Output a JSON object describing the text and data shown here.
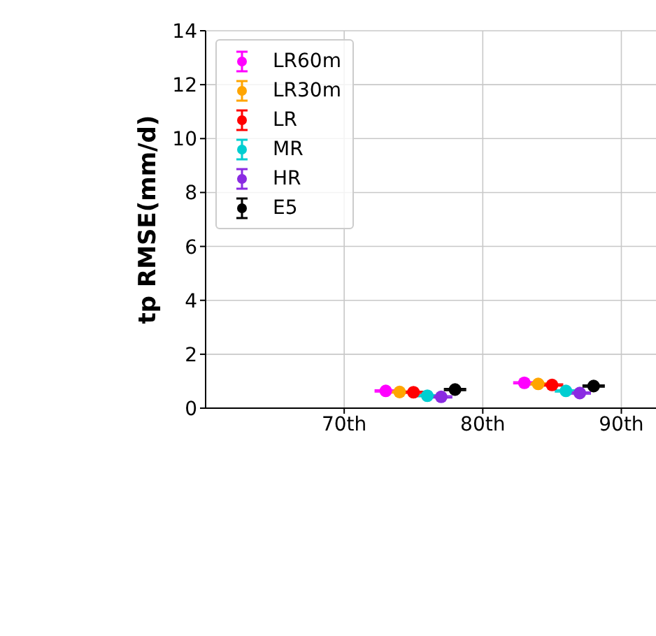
{
  "chart_data": {
    "type": "scatter",
    "ylabel": "tp RMSE(mm/d)",
    "xlim": [
      60,
      92.5
    ],
    "xticks": [
      {
        "value": 70,
        "label": "70th"
      },
      {
        "value": 80,
        "label": "80th"
      },
      {
        "value": 90,
        "label": "90th"
      }
    ],
    "ylim": [
      0,
      14
    ],
    "yticks": [
      0,
      2,
      4,
      6,
      8,
      10,
      12,
      14
    ],
    "grid": true,
    "legend": "top left",
    "marker": "circle",
    "series": [
      {
        "name": "LR60m",
        "color": "#ff00ff",
        "x": [
          73,
          83
        ],
        "values": [
          0.64,
          0.94
        ],
        "errors": [
          0.03,
          0.03
        ]
      },
      {
        "name": "LR30m",
        "color": "#ffa500",
        "x": [
          74,
          84
        ],
        "values": [
          0.6,
          0.9
        ],
        "errors": [
          0.03,
          0.03
        ]
      },
      {
        "name": "LR",
        "color": "#ff0000",
        "x": [
          75,
          85
        ],
        "values": [
          0.59,
          0.86
        ],
        "errors": [
          0.03,
          0.03
        ]
      },
      {
        "name": "MR",
        "color": "#00ced1",
        "x": [
          76,
          86
        ],
        "values": [
          0.46,
          0.64
        ],
        "errors": [
          0.03,
          0.03
        ]
      },
      {
        "name": "HR",
        "color": "#8a2be2",
        "x": [
          77,
          87
        ],
        "values": [
          0.42,
          0.56
        ],
        "errors": [
          0.03,
          0.03
        ]
      },
      {
        "name": "E5",
        "color": "#000000",
        "x": [
          78,
          88
        ],
        "values": [
          0.69,
          0.82
        ],
        "errors": [
          0.03,
          0.03
        ]
      }
    ]
  }
}
